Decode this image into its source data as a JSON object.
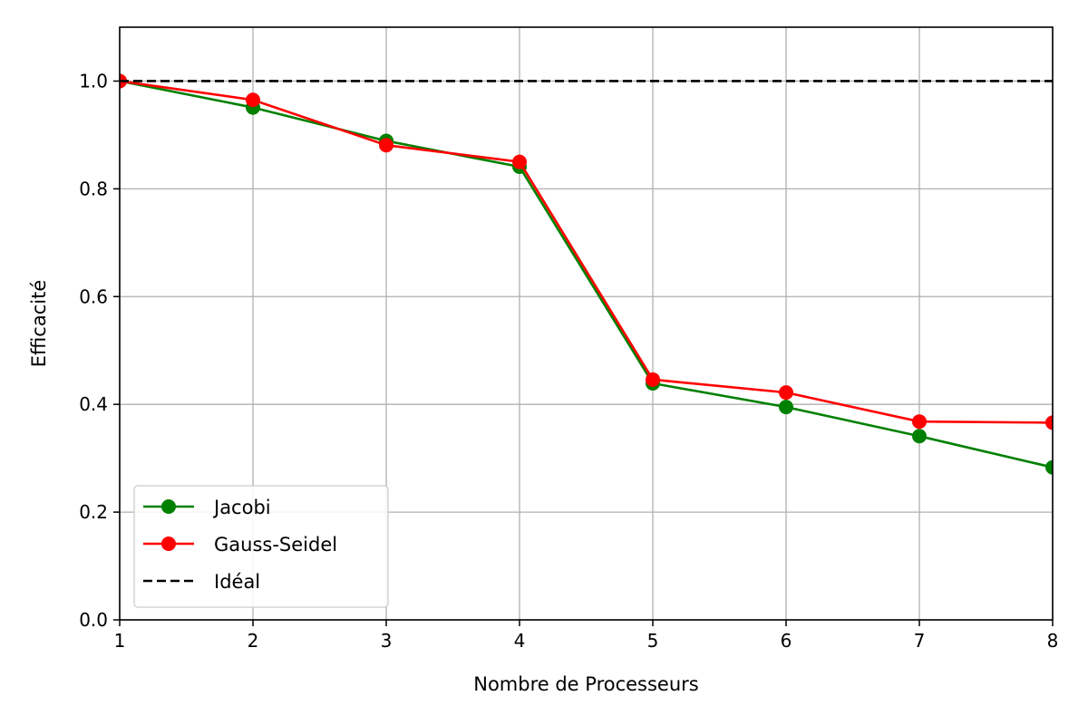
{
  "chart_data": {
    "type": "line",
    "title": "",
    "xlabel": "Nombre de Processeurs",
    "ylabel": "Efficacité",
    "x": [
      1,
      2,
      3,
      4,
      5,
      6,
      7,
      8
    ],
    "xlim": [
      1,
      8
    ],
    "ylim": [
      0,
      1.1
    ],
    "xticks": [
      "1",
      "2",
      "3",
      "4",
      "5",
      "6",
      "7",
      "8"
    ],
    "yticks": [
      "0.0",
      "0.2",
      "0.4",
      "0.6",
      "0.8",
      "1.0"
    ],
    "grid": true,
    "legend_position": "lower-left",
    "series": [
      {
        "name": "Jacobi",
        "color": "#008000",
        "style": "solid",
        "marker": "circle",
        "values": [
          1.0,
          0.951,
          0.889,
          0.841,
          0.439,
          0.395,
          0.341,
          0.283
        ]
      },
      {
        "name": "Gauss-Seidel",
        "color": "#ff0000",
        "style": "solid",
        "marker": "circle",
        "values": [
          1.0,
          0.965,
          0.881,
          0.85,
          0.446,
          0.422,
          0.368,
          0.366
        ]
      },
      {
        "name": "Idéal",
        "color": "#000000",
        "style": "dashed",
        "marker": "none",
        "values": [
          1.0,
          1.0,
          1.0,
          1.0,
          1.0,
          1.0,
          1.0,
          1.0
        ]
      }
    ]
  }
}
